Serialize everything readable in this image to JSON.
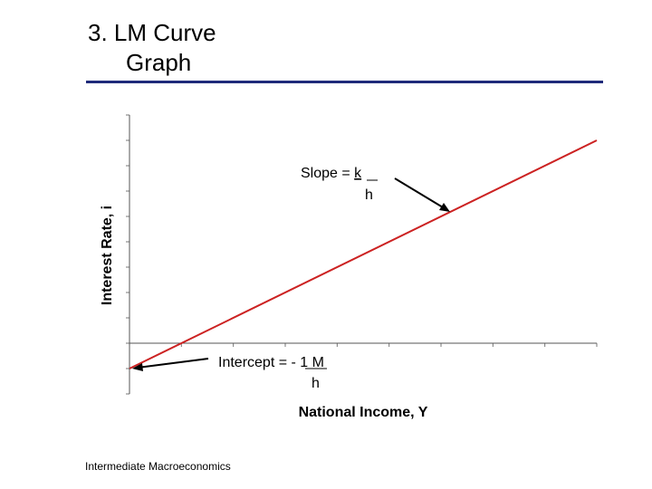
{
  "slide": {
    "title_line1": "3.  LM Curve",
    "title_line2": "Graph",
    "footer": "Intermediate Macroeconomics",
    "rule_color": "#1f2a7a"
  },
  "chart_data": {
    "type": "line",
    "xlabel": "National Income, Y",
    "ylabel": "Interest Rate, i",
    "xlim": [
      0,
      9
    ],
    "ylim": [
      -2,
      9
    ],
    "series": [
      {
        "x": [
          0,
          9
        ],
        "y": [
          -1,
          8
        ],
        "color": "#cc2222"
      }
    ],
    "annotations": {
      "slope": {
        "prefix": "Slope = ",
        "numerator": "k",
        "denominator": "h"
      },
      "intercept": {
        "prefix": "Intercept  = - ",
        "numerator": "1",
        "suffix": "  M",
        "denominator": "h"
      }
    },
    "grid": false
  }
}
